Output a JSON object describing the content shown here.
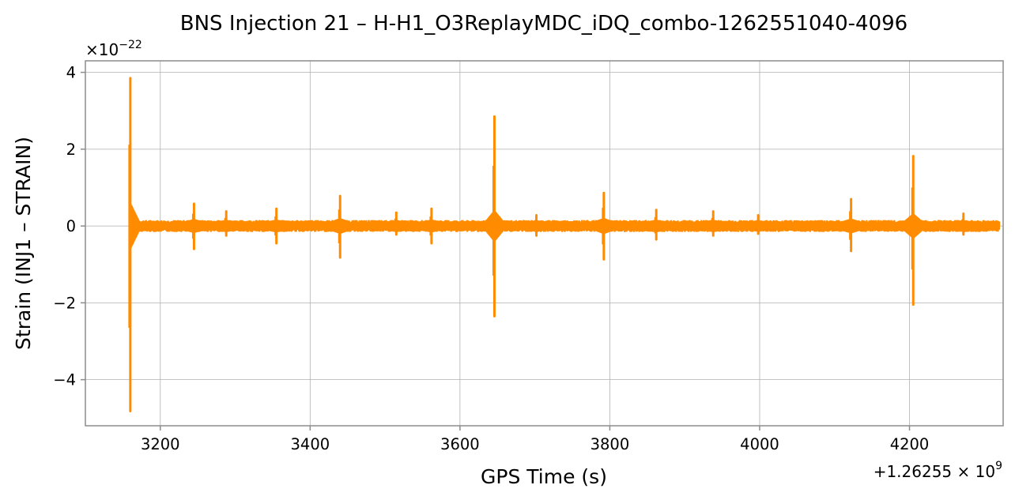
{
  "chart_data": {
    "type": "line",
    "title": "BNS Injection 21 – H-H1_O3ReplayMDC_iDQ_combo-1262551040-4096",
    "xlabel": "GPS Time (s)",
    "ylabel": "Strain (INJ1 – STRAIN)",
    "xlim": [
      3100,
      4325
    ],
    "ylim": [
      -5.2,
      4.3
    ],
    "x_ticks": [
      3200,
      3400,
      3600,
      3800,
      4000,
      4200
    ],
    "y_ticks": [
      -4,
      -2,
      0,
      2,
      4
    ],
    "x_tick_labels": [
      "3200",
      "3400",
      "3600",
      "3800",
      "4000",
      "4200"
    ],
    "y_tick_labels": [
      "−4",
      "−2",
      "0",
      "2",
      "4"
    ],
    "y_multiplier": {
      "base": "×10",
      "exponent": "−22"
    },
    "x_offset": {
      "prefix": "+1.26255 × 10",
      "exponent": "9"
    },
    "grid": true,
    "series": [
      {
        "color": "#ff8c00",
        "x_start": 3160,
        "x_end": 4320,
        "baseline_amplitude": 0.12,
        "spikes": [
          {
            "x": 3160,
            "max": 3.85,
            "min": -4.82
          },
          {
            "x": 3245,
            "max": 0.58,
            "min": -0.6
          },
          {
            "x": 3288,
            "max": 0.38,
            "min": -0.25
          },
          {
            "x": 3355,
            "max": 0.45,
            "min": -0.45
          },
          {
            "x": 3440,
            "max": 0.78,
            "min": -0.82
          },
          {
            "x": 3515,
            "max": 0.35,
            "min": -0.22
          },
          {
            "x": 3562,
            "max": 0.45,
            "min": -0.45
          },
          {
            "x": 3646,
            "max": 2.85,
            "min": -2.35
          },
          {
            "x": 3702,
            "max": 0.28,
            "min": -0.25
          },
          {
            "x": 3792,
            "max": 0.86,
            "min": -0.87
          },
          {
            "x": 3862,
            "max": 0.42,
            "min": -0.35
          },
          {
            "x": 3938,
            "max": 0.38,
            "min": -0.25
          },
          {
            "x": 3998,
            "max": 0.28,
            "min": -0.2
          },
          {
            "x": 4122,
            "max": 0.7,
            "min": -0.65
          },
          {
            "x": 4205,
            "max": 1.82,
            "min": -2.05
          },
          {
            "x": 4272,
            "max": 0.32,
            "min": -0.22
          }
        ]
      }
    ]
  }
}
